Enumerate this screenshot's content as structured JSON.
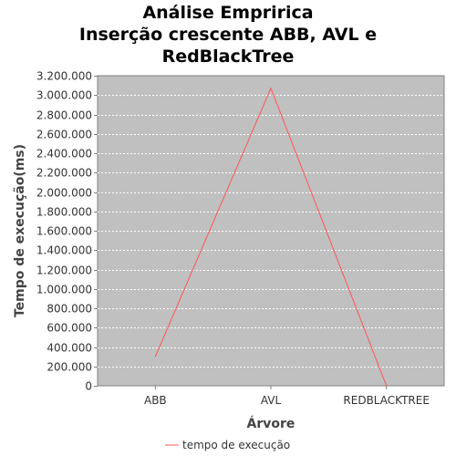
{
  "chart_data": {
    "type": "line",
    "title_lines": [
      "Análise Empririca",
      "Inserção crescente ABB, AVL e",
      "RedBlackTree"
    ],
    "xlabel": "Árvore",
    "ylabel": "Tempo de execução(ms)",
    "categories": [
      "ABB",
      "AVL",
      "REDBLACKTREE"
    ],
    "series": [
      {
        "name": "tempo de execução",
        "values": [
          300000,
          3070000,
          0
        ],
        "color": "#ff5555"
      }
    ],
    "ylim": [
      0,
      3200000
    ],
    "yticks": [
      0,
      200000,
      400000,
      600000,
      800000,
      1000000,
      1200000,
      1400000,
      1600000,
      1800000,
      2000000,
      2200000,
      2400000,
      2600000,
      2800000,
      3000000,
      3200000
    ],
    "ytick_labels": [
      "0",
      "200.000",
      "400.000",
      "600.000",
      "800.000",
      "1.000.000",
      "1.200.000",
      "1.400.000",
      "1.600.000",
      "1.800.000",
      "2.000.000",
      "2.200.000",
      "2.400.000",
      "2.600.000",
      "2.800.000",
      "3.000.000",
      "3.200.000"
    ],
    "grid": true,
    "plot_background": "#c0c0c0",
    "grid_color": "#ffffff",
    "legend_position": "bottom"
  }
}
